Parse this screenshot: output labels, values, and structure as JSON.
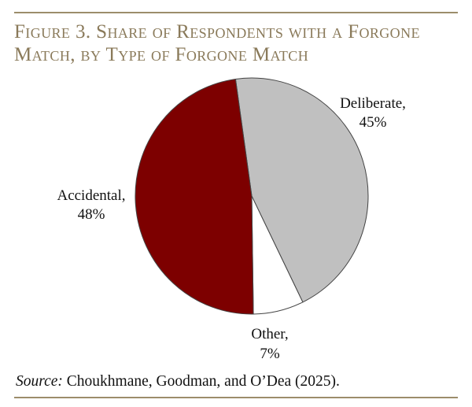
{
  "figure": {
    "title_line1": "Figure 3. Share of Respondents with a Forgone",
    "title_line2": "Match, by Type of Forgone Match"
  },
  "source": {
    "label": "Source:",
    "text": " Choukhmane, Goodman, and O’Dea (2025)."
  },
  "colors": {
    "rule": "#9c8d6b",
    "title": "#8a7a5a",
    "deliberate": "#c0c0c0",
    "other": "#ffffff",
    "accidental": "#7d0000",
    "slice_stroke": "#444444"
  },
  "chart_data": {
    "type": "pie",
    "title": "Figure 3. Share of Respondents with a Forgone Match, by Type of Forgone Match",
    "start_angle_deg": -8,
    "direction": "clockwise",
    "slices": [
      {
        "label": "Deliberate,",
        "value": 45,
        "value_label": "45%",
        "color": "#c0c0c0"
      },
      {
        "label": "Other,",
        "value": 7,
        "value_label": "7%",
        "color": "#ffffff"
      },
      {
        "label": "Accidental,",
        "value": 48,
        "value_label": "48%",
        "color": "#7d0000"
      }
    ]
  }
}
